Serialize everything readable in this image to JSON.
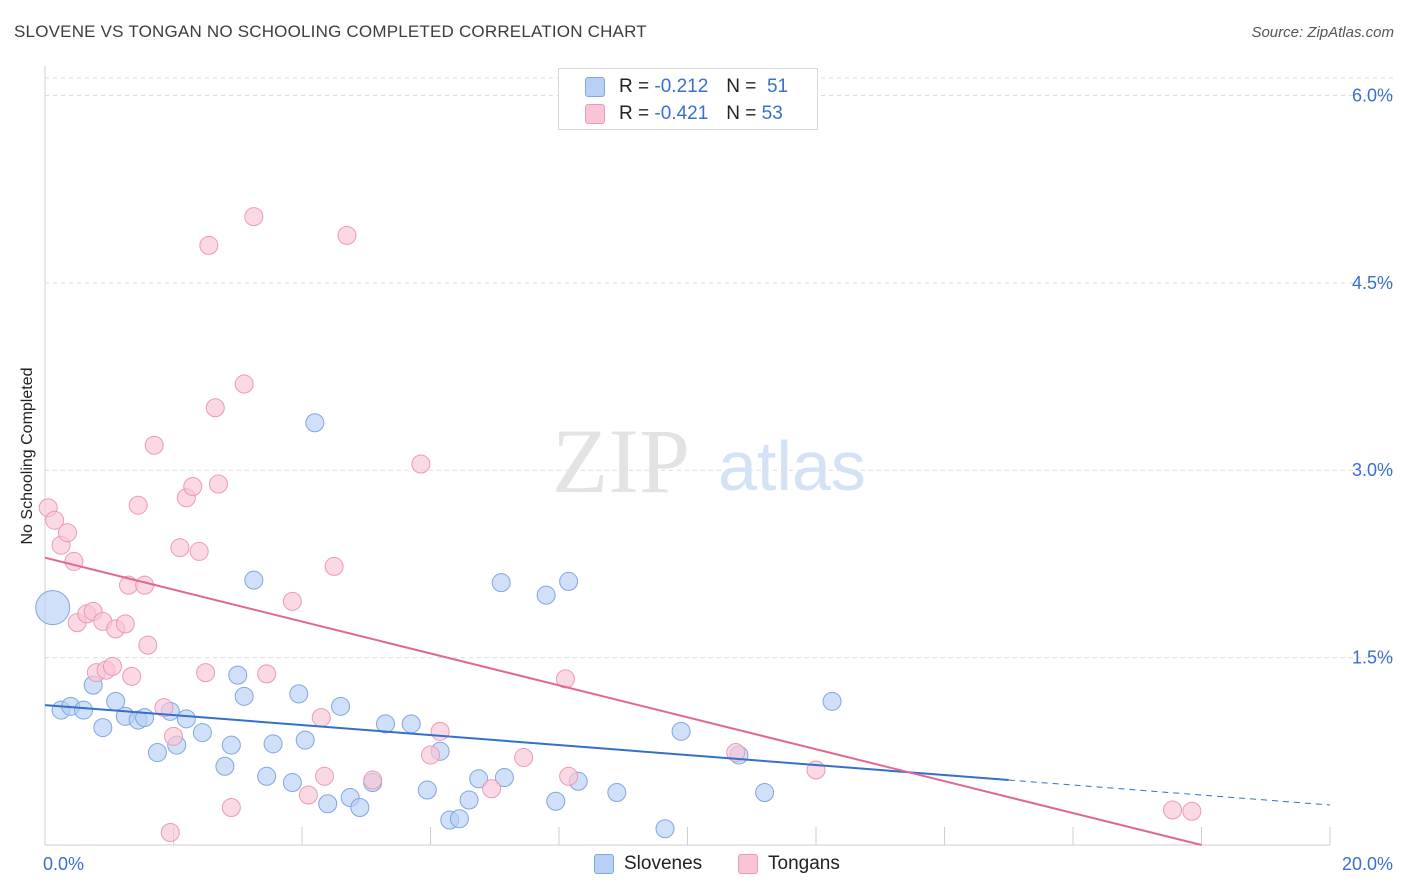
{
  "title": "SLOVENE VS TONGAN NO SCHOOLING COMPLETED CORRELATION CHART",
  "source": "Source: ZipAtlas.com",
  "watermark": {
    "zip": "ZIP",
    "atlas": "atlas"
  },
  "colors": {
    "slovene_fill": "#b7d0f4",
    "slovene_stroke": "#7fa6e0",
    "slovene_line": "#3370cc",
    "tongan_fill": "#f9c4d5",
    "tongan_stroke": "#ea9bb5",
    "tongan_line": "#e06896",
    "axis_label": "#3a6fd0",
    "grid": "#dcdcdc"
  },
  "legend": {
    "rows": [
      {
        "r_label": "R =",
        "r_value": "-0.212",
        "n_label": "N =",
        "n_value": "51"
      },
      {
        "r_label": "R =",
        "r_value": "-0.421",
        "n_label": "N =",
        "n_value": "53"
      }
    ]
  },
  "bottom_legend": {
    "slovenes": "Slovenes",
    "tongans": "Tongans"
  },
  "chart_data": {
    "type": "scatter",
    "title": "SLOVENE VS TONGAN NO SCHOOLING COMPLETED CORRELATION CHART",
    "xlabel": "",
    "ylabel": "No Schooling Completed",
    "xlim": [
      0,
      20
    ],
    "ylim": [
      0,
      6.3
    ],
    "x_tick_labels": [
      {
        "value": 0,
        "label": "0.0%"
      },
      {
        "value": 20,
        "label": "20.0%"
      }
    ],
    "y_tick_labels": [
      {
        "value": 1.5,
        "label": "1.5%"
      },
      {
        "value": 3.0,
        "label": "3.0%"
      },
      {
        "value": 4.5,
        "label": "4.5%"
      },
      {
        "value": 6.0,
        "label": "6.0%"
      }
    ],
    "series": [
      {
        "name": "Slovenes",
        "r": -0.212,
        "n": 51,
        "trend": {
          "x0": 0,
          "y0": 1.12,
          "x1": 15.0,
          "y1": 0.52,
          "dash_to_x": 20,
          "dash_to_y": 0.32
        },
        "points": [
          [
            0.12,
            1.9,
            "large"
          ],
          [
            0.25,
            1.08
          ],
          [
            0.4,
            1.11
          ],
          [
            0.6,
            1.08
          ],
          [
            0.75,
            1.28
          ],
          [
            0.9,
            0.94
          ],
          [
            1.1,
            1.15
          ],
          [
            1.25,
            1.03
          ],
          [
            1.45,
            1.0
          ],
          [
            1.55,
            1.02
          ],
          [
            1.75,
            0.74
          ],
          [
            1.95,
            1.07
          ],
          [
            2.05,
            0.8
          ],
          [
            2.2,
            1.01
          ],
          [
            2.45,
            0.9
          ],
          [
            2.8,
            0.63
          ],
          [
            2.9,
            0.8
          ],
          [
            3.0,
            1.36
          ],
          [
            3.1,
            1.19
          ],
          [
            3.25,
            2.12
          ],
          [
            3.45,
            0.55
          ],
          [
            3.55,
            0.81
          ],
          [
            3.85,
            0.5
          ],
          [
            3.95,
            1.21
          ],
          [
            4.05,
            0.84
          ],
          [
            4.2,
            3.38
          ],
          [
            4.4,
            0.33
          ],
          [
            4.6,
            1.11
          ],
          [
            4.75,
            0.38
          ],
          [
            4.9,
            0.3
          ],
          [
            5.1,
            0.5
          ],
          [
            5.3,
            0.97
          ],
          [
            5.7,
            0.97
          ],
          [
            5.95,
            0.44
          ],
          [
            6.15,
            0.75
          ],
          [
            6.3,
            0.2
          ],
          [
            6.45,
            0.21
          ],
          [
            6.6,
            0.36
          ],
          [
            6.75,
            0.53
          ],
          [
            7.1,
            2.1
          ],
          [
            7.15,
            0.54
          ],
          [
            7.8,
            2.0
          ],
          [
            7.95,
            0.35
          ],
          [
            8.15,
            2.11
          ],
          [
            8.3,
            0.51
          ],
          [
            8.9,
            0.42
          ],
          [
            9.65,
            0.13
          ],
          [
            9.9,
            0.91
          ],
          [
            10.8,
            0.72
          ],
          [
            11.2,
            0.42
          ],
          [
            12.25,
            1.15
          ]
        ]
      },
      {
        "name": "Tongans",
        "r": -0.421,
        "n": 53,
        "trend": {
          "x0": 0,
          "y0": 2.3,
          "x1": 18.0,
          "y1": 0.0
        },
        "points": [
          [
            0.05,
            2.7
          ],
          [
            0.15,
            2.6
          ],
          [
            0.25,
            2.4
          ],
          [
            0.35,
            2.5
          ],
          [
            0.45,
            2.27
          ],
          [
            0.5,
            1.78
          ],
          [
            0.65,
            1.85
          ],
          [
            0.75,
            1.87
          ],
          [
            0.8,
            1.38
          ],
          [
            0.9,
            1.79
          ],
          [
            0.95,
            1.4
          ],
          [
            1.05,
            1.43
          ],
          [
            1.1,
            1.73
          ],
          [
            1.25,
            1.77
          ],
          [
            1.3,
            2.08
          ],
          [
            1.35,
            1.35
          ],
          [
            1.45,
            2.72
          ],
          [
            1.55,
            2.08
          ],
          [
            1.6,
            1.6
          ],
          [
            1.7,
            3.2
          ],
          [
            1.85,
            1.1
          ],
          [
            1.95,
            0.1
          ],
          [
            2.0,
            0.87
          ],
          [
            2.1,
            2.38
          ],
          [
            2.2,
            2.78
          ],
          [
            2.3,
            2.87
          ],
          [
            2.4,
            2.35
          ],
          [
            2.5,
            1.38
          ],
          [
            2.55,
            4.8
          ],
          [
            2.65,
            3.5
          ],
          [
            2.7,
            2.89
          ],
          [
            2.9,
            0.3
          ],
          [
            3.1,
            3.69
          ],
          [
            3.25,
            5.03
          ],
          [
            3.45,
            1.37
          ],
          [
            3.85,
            1.95
          ],
          [
            4.1,
            0.4
          ],
          [
            4.3,
            1.02
          ],
          [
            4.35,
            0.55
          ],
          [
            4.5,
            2.23
          ],
          [
            4.7,
            4.88
          ],
          [
            5.1,
            0.52
          ],
          [
            5.85,
            3.05
          ],
          [
            6.0,
            0.72
          ],
          [
            6.15,
            0.91
          ],
          [
            6.95,
            0.45
          ],
          [
            7.45,
            0.7
          ],
          [
            8.1,
            1.33
          ],
          [
            8.15,
            0.55
          ],
          [
            10.75,
            0.74
          ],
          [
            12.0,
            0.6
          ],
          [
            17.55,
            0.28
          ],
          [
            17.85,
            0.27
          ]
        ]
      }
    ]
  }
}
